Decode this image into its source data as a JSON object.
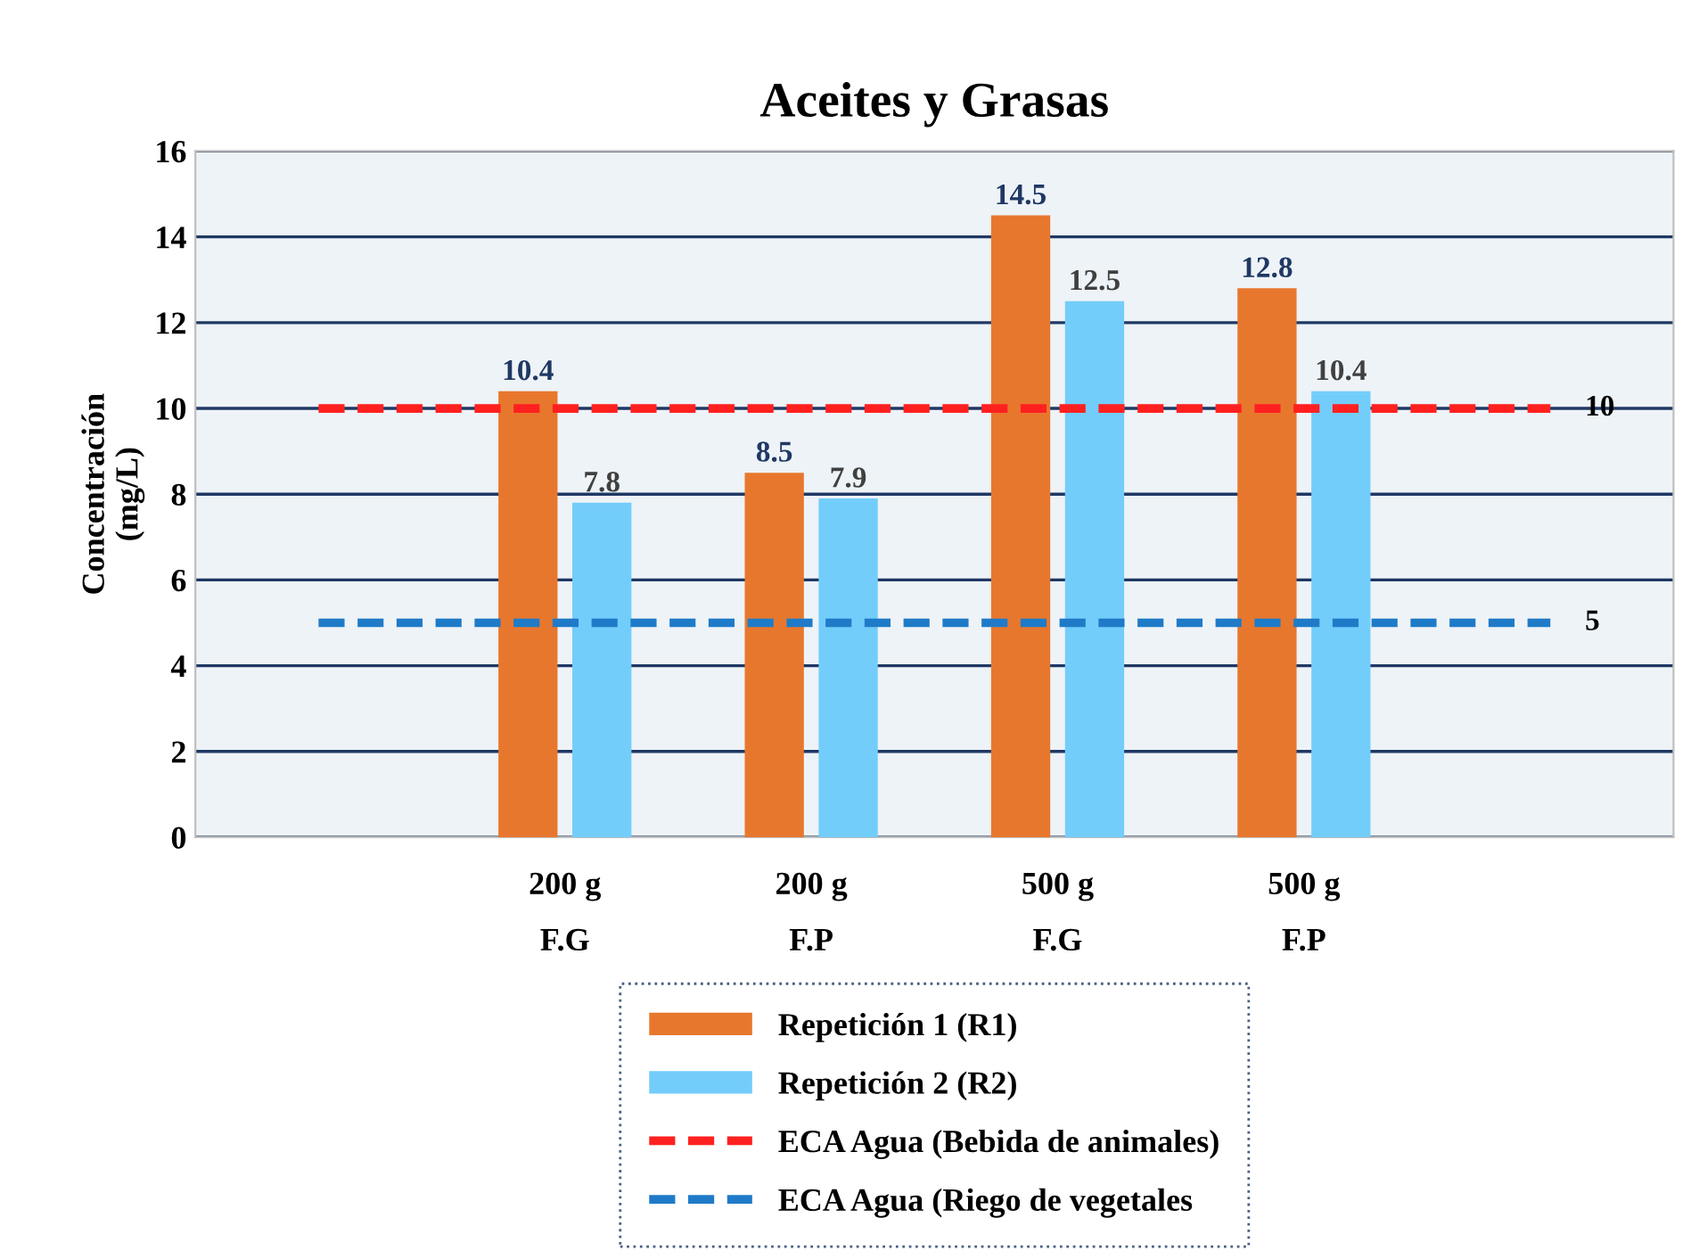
{
  "chart_data": {
    "type": "bar",
    "title": "Aceites y Grasas",
    "ylabel": "Concentración\n(mg/L)",
    "categories": [
      null,
      "200 g\nF.G",
      "200 g\nF.P",
      "500 g\nF.G",
      "500 g\nF.P",
      null
    ],
    "series": [
      {
        "name": "Repetición 1 (R1)",
        "color": "#e8772e",
        "values": [
          null,
          10.4,
          8.5,
          14.5,
          12.8,
          null
        ]
      },
      {
        "name": "Repetición 2 (R2)",
        "color": "#73cdfb",
        "values": [
          null,
          7.8,
          7.9,
          12.5,
          10.4,
          null
        ]
      },
      {
        "name": "ECA Agua (Bebida de animales)",
        "type": "line",
        "line_style": "dashed",
        "color": "#ff2020",
        "values": [
          10,
          10,
          10,
          10,
          10,
          10
        ],
        "value_labels": [
          null,
          null,
          null,
          null,
          null,
          "10"
        ]
      },
      {
        "name": "ECA Agua (Riego de vegetales",
        "type": "line",
        "line_style": "dashed",
        "color": "#1f7bc8",
        "values": [
          5,
          5,
          5,
          5,
          5,
          5
        ],
        "value_labels": [
          null,
          null,
          null,
          null,
          null,
          "5"
        ]
      }
    ],
    "ylim": [
      0,
      16
    ],
    "yticks": [
      0,
      2,
      4,
      6,
      8,
      10,
      12,
      14,
      16
    ],
    "grid": "y",
    "legend": "bottom",
    "data_labels": true
  }
}
